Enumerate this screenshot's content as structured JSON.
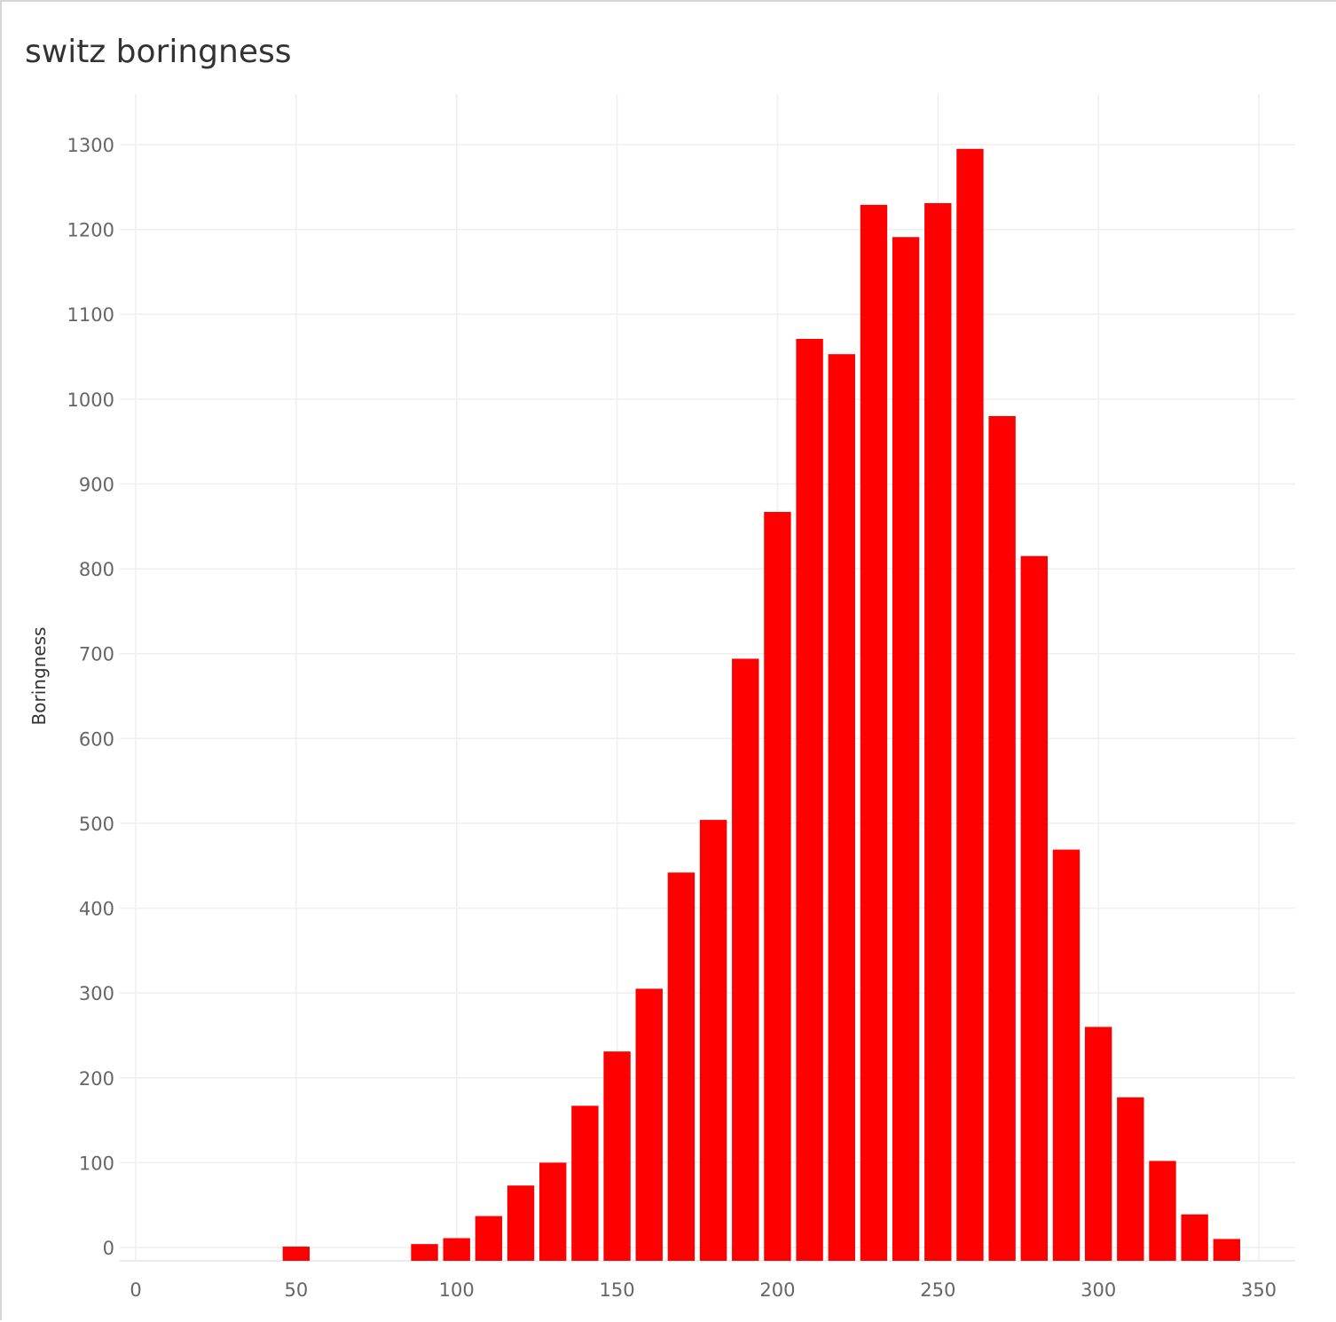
{
  "chart_data": {
    "type": "bar",
    "title": "switz boringness",
    "xlabel": "",
    "ylabel": "Boringness",
    "xlim": [
      -5,
      360
    ],
    "ylim": [
      -15,
      1360
    ],
    "x_ticks": [
      0,
      50,
      100,
      150,
      200,
      250,
      300,
      350
    ],
    "y_ticks": [
      0,
      100,
      200,
      300,
      400,
      500,
      600,
      700,
      800,
      900,
      1000,
      1100,
      1200,
      1300
    ],
    "bin_width": 10,
    "bar_color": "#ff0000",
    "grid": true,
    "legend": "none",
    "x": [
      50,
      90,
      100,
      110,
      120,
      130,
      140,
      150,
      160,
      170,
      180,
      190,
      200,
      210,
      220,
      230,
      240,
      250,
      260,
      270,
      280,
      290,
      300,
      310,
      320,
      330,
      340
    ],
    "values": [
      1,
      4,
      11,
      37,
      73,
      100,
      167,
      231,
      305,
      442,
      504,
      694,
      867,
      1071,
      1053,
      1229,
      1191,
      1231,
      1295,
      980,
      815,
      469,
      260,
      177,
      102,
      39,
      10
    ]
  }
}
